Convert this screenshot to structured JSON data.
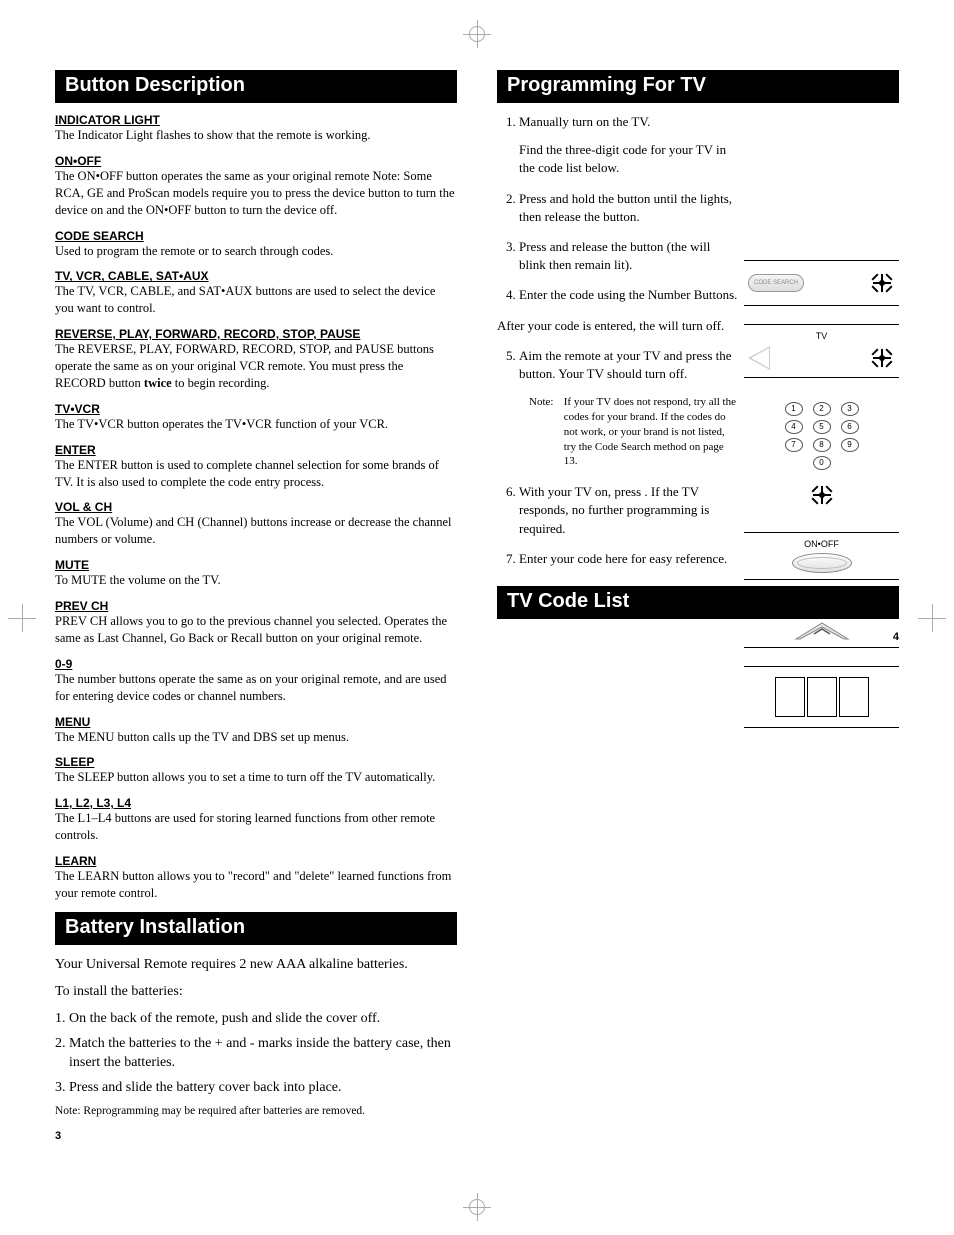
{
  "left": {
    "heading1": "Button Description",
    "defs": [
      {
        "title": "INDICATOR LIGHT",
        "text": "The Indicator Light flashes to show that the remote is working."
      },
      {
        "title": "ON•OFF",
        "text": "The ON•OFF button operates the same as your original remote Note: Some RCA, GE and ProScan models require you to press the device button to turn the device on and the ON•OFF button to turn the device off."
      },
      {
        "title": "CODE SEARCH",
        "text": "Used to program the remote or to search through codes."
      },
      {
        "title": "TV, VCR, CABLE, SAT•AUX",
        "text": "The TV, VCR, CABLE, and SAT•AUX buttons are used to select the device you want to control."
      },
      {
        "title": "REVERSE, PLAY, FORWARD, RECORD, STOP, PAUSE",
        "text": "The REVERSE, PLAY, FORWARD, RECORD, STOP, and PAUSE buttons operate the same as on your original VCR remote. You must press the RECORD button twice to begin recording."
      },
      {
        "title": "TV•VCR",
        "text": "The TV•VCR button operates the TV•VCR function of your VCR."
      },
      {
        "title": "ENTER",
        "text": "The ENTER button is used to complete channel selection for some brands of TV.  It is also used to complete the code entry process."
      },
      {
        "title": "VOL & CH",
        "text": "The VOL (Volume) and CH (Channel) buttons increase or decrease the channel numbers or volume."
      },
      {
        "title": "MUTE",
        "text": "To MUTE the volume on the TV."
      },
      {
        "title": "PREV CH",
        "text": "PREV CH allows you to go to the previous channel you selected. Operates the same as Last Channel, Go Back or Recall button on your original remote."
      },
      {
        "title": "0-9",
        "text": "The number buttons operate the same as on your original remote, and are used for entering device codes or channel numbers."
      },
      {
        "title": "MENU",
        "text": "The MENU button calls up the TV and DBS set up menus."
      },
      {
        "title": "SLEEP",
        "text": "The SLEEP button allows you to set a time to turn off the TV automatically."
      },
      {
        "title": "L1, L2, L3, L4",
        "text": "The L1–L4 buttons are used for storing learned functions from other remote controls."
      },
      {
        "title": "LEARN",
        "text": "The LEARN button allows you to \"record\" and \"delete\" learned functions from your remote control."
      }
    ],
    "heading2": "Battery Installation",
    "battery_intro1": "Your Universal Remote requires 2 new AAA alkaline batteries.",
    "battery_intro2": "To install the batteries:",
    "battery_steps": [
      "On the back of the remote, push and slide the cover off.",
      "Match the batteries to the + and - marks inside the battery case, then insert the batteries.",
      "Press and slide the battery cover back into place."
    ],
    "battery_note": "Note: Reprogramming may be required after batteries are removed.",
    "pagenum": "3"
  },
  "right": {
    "heading1": "Programming For TV",
    "steps": {
      "s1a": "Manually turn on the TV.",
      "s1b": "Find the three-digit code for your TV in the code list below.",
      "s2": "Press and hold the                      button until the                                lights, then release the                       button.",
      "s3": "Press and release the          button (the                                       will blink then remain lit).",
      "s4": "Enter the code using the Number Buttons.",
      "after": "After your code is entered, the                              will turn off.",
      "s5": "Aim the remote at your TV and press the                  button. Your TV should turn off.",
      "note_label": "Note:",
      "note_text": "If your TV does not respond, try all the codes for your brand. If the codes do not work, or your brand is not listed, try the Code Search method on page 13.",
      "s6": "With your TV on, press           . If the TV responds, no further programming is required.",
      "s7": "Enter your code here for easy reference."
    },
    "heading2": "TV Code List",
    "pagenum": "4",
    "illus": {
      "code_search": "CODE SEARCH",
      "tv": "TV",
      "onoff": "ON•OFF",
      "ch": "CH +",
      "numpad": [
        "1",
        "2",
        "3",
        "4",
        "5",
        "6",
        "7",
        "8",
        "9",
        "0"
      ]
    }
  },
  "style": {
    "bg": "#ffffff",
    "text": "#000000",
    "heading_bg": "#000000",
    "heading_fg": "#ffffff",
    "heading_fontsize": 20,
    "body_fontsize": 13,
    "def_title_fontsize": 12,
    "note_fontsize": 11
  }
}
